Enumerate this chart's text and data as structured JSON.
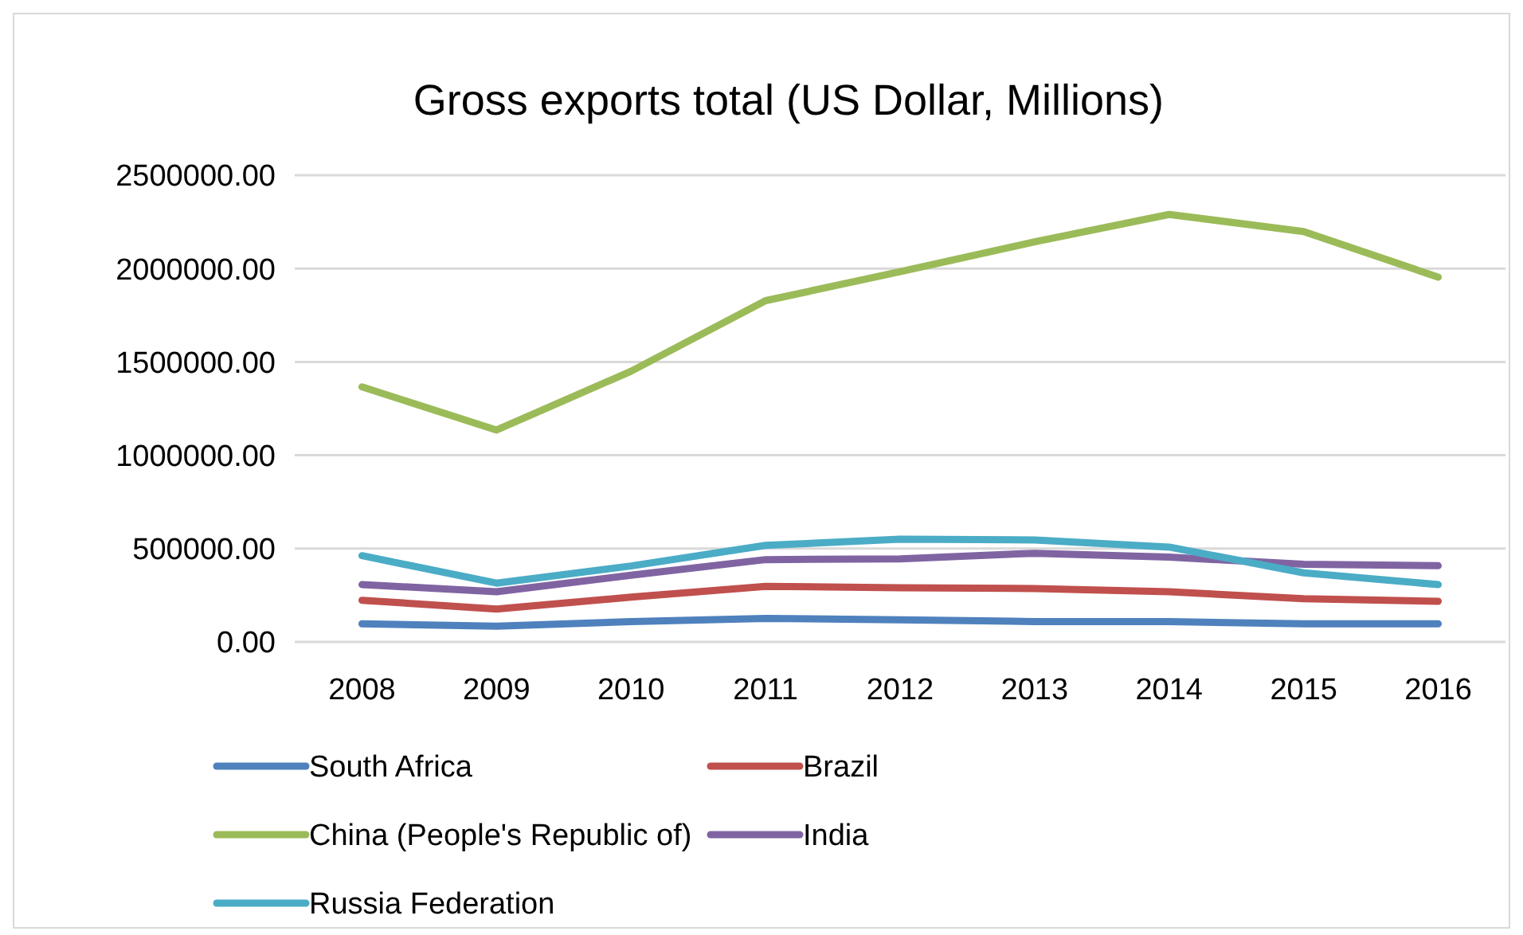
{
  "chart_data": {
    "type": "line",
    "title": "Gross exports total (US Dollar, Millions)",
    "categories": [
      "2008",
      "2009",
      "2010",
      "2011",
      "2012",
      "2013",
      "2014",
      "2015",
      "2016"
    ],
    "series": [
      {
        "name": "South Africa",
        "color": "#4f81bd",
        "values": [
          97000,
          84000,
          109000,
          126000,
          118000,
          109000,
          109000,
          97000,
          97000
        ]
      },
      {
        "name": "Brazil",
        "color": "#c0504d",
        "values": [
          223000,
          176000,
          240000,
          298000,
          290000,
          286000,
          269000,
          231000,
          218000
        ]
      },
      {
        "name": "China (People's Republic of)",
        "color": "#9bbb59",
        "values": [
          1366000,
          1135000,
          1450000,
          1828000,
          1983000,
          2143000,
          2290000,
          2198000,
          1954000
        ]
      },
      {
        "name": "India",
        "color": "#8064a2",
        "values": [
          307000,
          269000,
          357000,
          441000,
          445000,
          475000,
          454000,
          416000,
          408000
        ]
      },
      {
        "name": "Russia Federation",
        "color": "#4bacc6",
        "values": [
          462000,
          315000,
          407000,
          517000,
          550000,
          546000,
          508000,
          370000,
          307000
        ]
      }
    ],
    "ylim": [
      0,
      2500000
    ],
    "yticks": [
      {
        "value": 0,
        "label": "0.00"
      },
      {
        "value": 500000,
        "label": "500000.00"
      },
      {
        "value": 1000000,
        "label": "1000000.00"
      },
      {
        "value": 1500000,
        "label": "1500000.00"
      },
      {
        "value": 2000000,
        "label": "2000000.00"
      },
      {
        "value": 2500000,
        "label": "2500000.00"
      }
    ],
    "grid": "y",
    "legend": "bottom",
    "marker": "none",
    "line_style": "solid"
  }
}
